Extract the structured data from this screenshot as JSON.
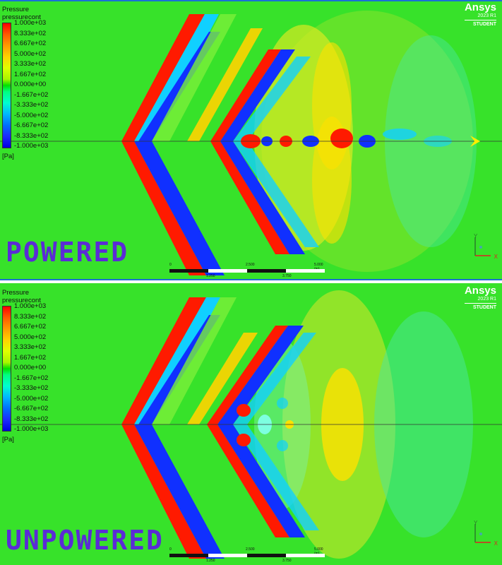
{
  "app": {
    "brand": "Ansys",
    "version": "2023 R1",
    "edition": "STUDENT"
  },
  "legend": {
    "title": "Pressure",
    "variable": "pressurecont",
    "ticks": [
      "1.000e+03",
      "8.333e+02",
      "6.667e+02",
      "5.000e+02",
      "3.333e+02",
      "1.667e+02",
      "0.000e+00",
      "-1.667e+02",
      "-3.333e+02",
      "-5.000e+02",
      "-6.667e+02",
      "-8.333e+02",
      "-1.000e+03"
    ],
    "unit": "[Pa]"
  },
  "scale_bar": {
    "labels_top": [
      "0",
      "2.500",
      "5.000 (m)"
    ],
    "labels_bottom": [
      "1.250",
      "3.750"
    ]
  },
  "axis_triad": {
    "x": "X",
    "y": "Y"
  },
  "panels": [
    {
      "label": "POWERED"
    },
    {
      "label": "UNPOWERED"
    }
  ],
  "colors": {
    "ambient": "#37e22a",
    "high": "#ff0000",
    "low": "#1028ff",
    "label": "#5b2bd6",
    "accent": "#1a6fd6"
  }
}
